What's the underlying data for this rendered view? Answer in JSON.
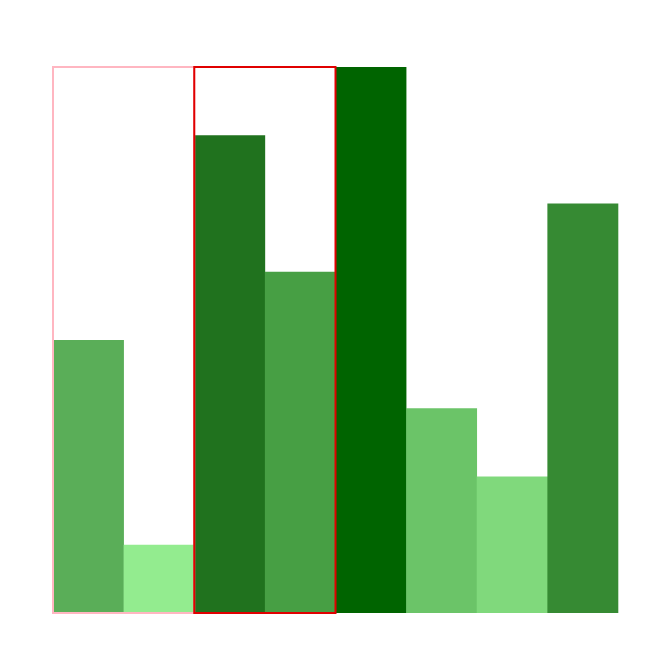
{
  "chart_data": {
    "type": "bar",
    "categories": [
      "",
      "",
      "",
      "",
      "",
      "",
      "",
      ""
    ],
    "values": [
      4,
      1,
      7,
      5,
      8,
      3,
      2,
      6
    ],
    "ylim": [
      0,
      8
    ],
    "bar_colors": [
      "#5aae58",
      "#93ec8f",
      "#20721e",
      "#479f44",
      "#006400",
      "#6bc468",
      "#80d97c",
      "#368a33"
    ],
    "grid": false,
    "legend": "none",
    "highlight_boxes": [
      {
        "from_index": 0,
        "to_index": 1,
        "stroke": "#ffb6c1"
      },
      {
        "from_index": 2,
        "to_index": 3,
        "stroke": "#e00000"
      }
    ]
  }
}
